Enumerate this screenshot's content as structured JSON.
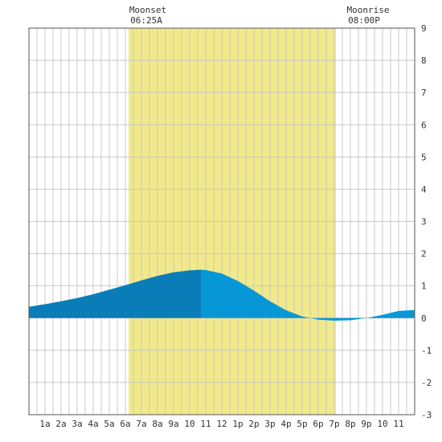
{
  "colors": {
    "daylight": "#f2e98a",
    "tide_dark": "#0a7db8",
    "tide_light": "#0897d6",
    "grid": "#c8c8c8",
    "frame": "#555555"
  },
  "moon": {
    "moonset": {
      "label": "Moonset",
      "time": "06:25A"
    },
    "moonrise": {
      "label": "Moonrise",
      "time": "08:00P"
    }
  },
  "chart_data": {
    "type": "area",
    "x_unit": "hour of day",
    "xlim": [
      0,
      24
    ],
    "ylim": [
      -3,
      9
    ],
    "y_ticks": [
      9,
      8,
      7,
      6,
      5,
      4,
      3,
      2,
      1,
      0,
      -1,
      -2,
      -3
    ],
    "x_tick_labels": [
      "1a",
      "2a",
      "3a",
      "4a",
      "5a",
      "6a",
      "7a",
      "8a",
      "9a",
      "10",
      "11",
      "12",
      "1p",
      "2p",
      "3p",
      "4p",
      "5p",
      "6p",
      "7p",
      "8p",
      "9p",
      "10",
      "11"
    ],
    "grid": true,
    "daylight_band_hours": [
      6.2,
      19.1
    ],
    "split_hour": 10.7,
    "series": [
      {
        "points": [
          [
            0,
            0.35
          ],
          [
            1,
            0.43
          ],
          [
            2,
            0.52
          ],
          [
            3,
            0.62
          ],
          [
            4,
            0.74
          ],
          [
            5,
            0.88
          ],
          [
            6,
            1.02
          ],
          [
            7,
            1.17
          ],
          [
            8,
            1.31
          ],
          [
            9,
            1.42
          ],
          [
            10,
            1.48
          ],
          [
            10.7,
            1.5
          ],
          [
            11,
            1.49
          ],
          [
            12,
            1.38
          ],
          [
            13,
            1.15
          ],
          [
            14,
            0.85
          ],
          [
            15,
            0.52
          ],
          [
            16,
            0.24
          ],
          [
            17,
            0.05
          ],
          [
            18,
            -0.05
          ],
          [
            19,
            -0.08
          ],
          [
            20,
            -0.07
          ],
          [
            21,
            0.0
          ],
          [
            22,
            0.1
          ],
          [
            23,
            0.22
          ],
          [
            24,
            0.25
          ]
        ]
      }
    ]
  }
}
